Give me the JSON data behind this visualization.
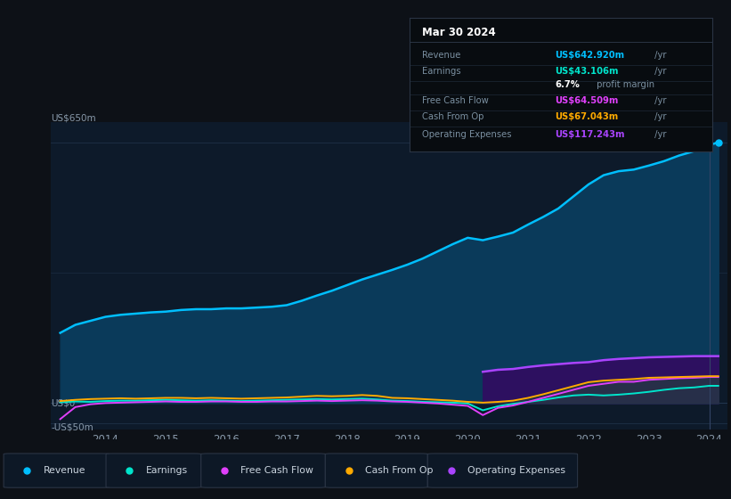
{
  "bg_color": "#0d1117",
  "chart_bg": "#0d1a2a",
  "grid_color": "#2a3f5a",
  "text_color": "#8899aa",
  "ylabel_top": "US$650m",
  "ylabel_zero": "US$0",
  "ylabel_neg": "-US$50m",
  "years": [
    2013.25,
    2013.5,
    2013.75,
    2014.0,
    2014.25,
    2014.5,
    2014.75,
    2015.0,
    2015.25,
    2015.5,
    2015.75,
    2016.0,
    2016.25,
    2016.5,
    2016.75,
    2017.0,
    2017.25,
    2017.5,
    2017.75,
    2018.0,
    2018.25,
    2018.5,
    2018.75,
    2019.0,
    2019.25,
    2019.5,
    2019.75,
    2020.0,
    2020.25,
    2020.5,
    2020.75,
    2021.0,
    2021.25,
    2021.5,
    2021.75,
    2022.0,
    2022.25,
    2022.5,
    2022.75,
    2023.0,
    2023.25,
    2023.5,
    2023.75,
    2024.0,
    2024.15
  ],
  "revenue": [
    175,
    195,
    205,
    215,
    220,
    223,
    226,
    228,
    232,
    234,
    234,
    236,
    236,
    238,
    240,
    244,
    255,
    268,
    280,
    294,
    308,
    320,
    332,
    345,
    360,
    378,
    396,
    412,
    406,
    415,
    425,
    445,
    464,
    485,
    515,
    545,
    568,
    578,
    582,
    592,
    603,
    617,
    628,
    643,
    650
  ],
  "earnings": [
    2,
    4,
    3,
    5,
    6,
    6,
    7,
    8,
    7,
    6,
    7,
    6,
    5,
    6,
    7,
    8,
    9,
    10,
    9,
    10,
    11,
    9,
    6,
    5,
    3,
    2,
    1,
    -1,
    -18,
    -8,
    -2,
    3,
    8,
    14,
    19,
    21,
    19,
    21,
    24,
    28,
    33,
    37,
    39,
    43,
    43
  ],
  "free_cash_flow": [
    -40,
    -10,
    -3,
    0,
    1,
    2,
    3,
    4,
    3,
    3,
    4,
    4,
    3,
    3,
    4,
    4,
    5,
    6,
    5,
    6,
    7,
    6,
    4,
    3,
    1,
    -1,
    -4,
    -7,
    -30,
    -12,
    -6,
    3,
    13,
    23,
    33,
    43,
    48,
    53,
    53,
    58,
    60,
    62,
    63,
    65,
    65
  ],
  "cash_from_op": [
    5,
    8,
    10,
    11,
    12,
    11,
    12,
    13,
    13,
    12,
    13,
    12,
    11,
    12,
    13,
    14,
    16,
    18,
    17,
    18,
    20,
    18,
    13,
    12,
    10,
    8,
    6,
    3,
    1,
    3,
    6,
    13,
    22,
    32,
    42,
    52,
    56,
    58,
    60,
    63,
    64,
    65,
    66,
    67,
    67
  ],
  "operating_expenses": [
    0,
    0,
    0,
    0,
    0,
    0,
    0,
    0,
    0,
    0,
    0,
    0,
    0,
    0,
    0,
    0,
    0,
    0,
    0,
    0,
    0,
    0,
    0,
    0,
    0,
    0,
    0,
    0,
    78,
    83,
    85,
    90,
    94,
    97,
    100,
    102,
    107,
    110,
    112,
    114,
    115,
    116,
    117,
    117,
    117
  ],
  "revenue_color": "#00bfff",
  "earnings_color": "#00e5cc",
  "free_cash_flow_color": "#e040fb",
  "cash_from_op_color": "#ffaa00",
  "operating_expenses_color": "#aa44ff",
  "revenue_fill_color": "#0a3a5a",
  "op_exp_fill_color": "#2d1060",
  "cash_fill_color": "#1a2a3a",
  "legend_items": [
    "Revenue",
    "Earnings",
    "Free Cash Flow",
    "Cash From Op",
    "Operating Expenses"
  ],
  "legend_colors": [
    "#00bfff",
    "#00e5cc",
    "#e040fb",
    "#ffaa00",
    "#aa44ff"
  ],
  "tooltip_title": "Mar 30 2024",
  "tooltip_bg": "#080c10",
  "tooltip_border": "#2a3444",
  "tooltip_rows": [
    {
      "label": "Revenue",
      "value": "US$642.920m",
      "value_color": "#00bfff",
      "suffix": " /yr"
    },
    {
      "label": "Earnings",
      "value": "US$43.106m",
      "value_color": "#00e5cc",
      "suffix": " /yr"
    },
    {
      "label": "",
      "value": "6.7%",
      "value_color": "#ffffff",
      "suffix": " profit margin"
    },
    {
      "label": "Free Cash Flow",
      "value": "US$64.509m",
      "value_color": "#e040fb",
      "suffix": " /yr"
    },
    {
      "label": "Cash From Op",
      "value": "US$67.043m",
      "value_color": "#ffaa00",
      "suffix": " /yr"
    },
    {
      "label": "Operating Expenses",
      "value": "US$117.243m",
      "value_color": "#aa44ff",
      "suffix": " /yr"
    }
  ],
  "x_tick_years": [
    2014,
    2015,
    2016,
    2017,
    2018,
    2019,
    2020,
    2021,
    2022,
    2023,
    2024
  ],
  "ylim_min": -65,
  "ylim_max": 700,
  "xlim_min": 2013.1,
  "xlim_max": 2024.3
}
